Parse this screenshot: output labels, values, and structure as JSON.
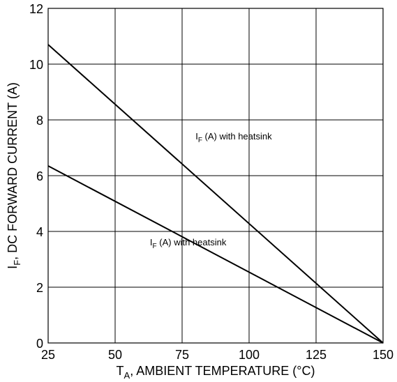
{
  "chart_data": {
    "type": "line",
    "title": "",
    "xlabel": {
      "main": "T",
      "sub": "A",
      "rest": ", AMBIENT TEMPERATURE (°C)"
    },
    "ylabel": {
      "main": "I",
      "sub": "F",
      "rest": ", DC FORWARD CURRENT (A)"
    },
    "xlim": [
      25,
      150
    ],
    "ylim": [
      0,
      12
    ],
    "xticks": [
      25,
      50,
      75,
      100,
      125,
      150
    ],
    "yticks": [
      0,
      2,
      4,
      6,
      8,
      10,
      12
    ],
    "grid": true,
    "series": [
      {
        "x": [
          25,
          150
        ],
        "y": [
          10.7,
          0
        ]
      },
      {
        "x": [
          25,
          150
        ],
        "y": [
          6.35,
          0
        ]
      }
    ],
    "annotations": [
      {
        "main": "I",
        "sub": "F",
        "rest": " (A) with heatsink",
        "x": 80,
        "y": 7.3
      },
      {
        "main": "I",
        "sub": "F",
        "rest": " (A) with heatsink",
        "x": 63,
        "y": 3.5
      }
    ]
  }
}
